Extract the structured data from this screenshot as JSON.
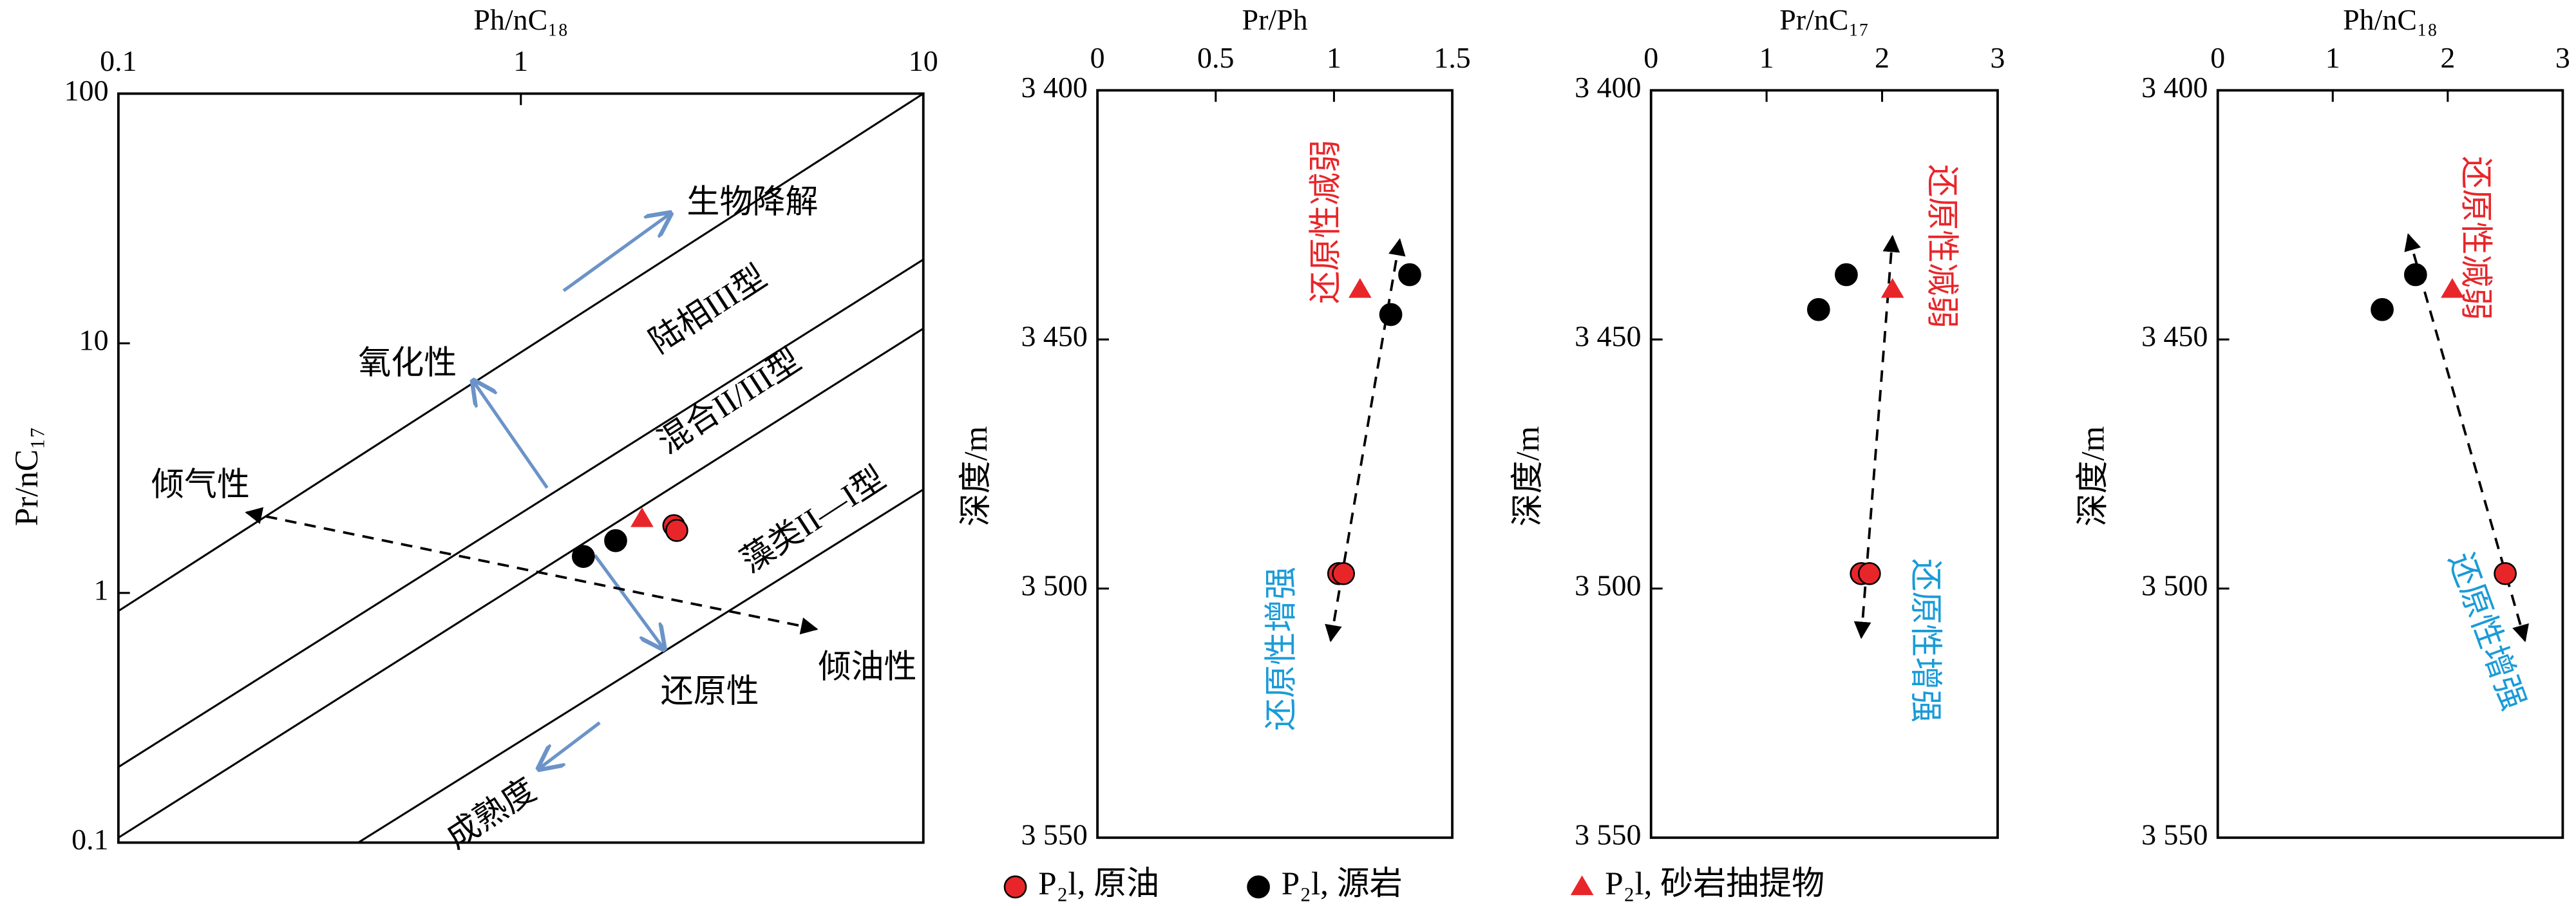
{
  "chart_data": [
    {
      "type": "scatter",
      "x_label": "Ph/nC₁₈",
      "y_label": "Pr/nC₁₇",
      "x_log": true,
      "y_log": true,
      "xlim": [
        0.1,
        10
      ],
      "ylim": [
        0.1,
        100
      ],
      "xticks": [
        0.1,
        1,
        10
      ],
      "yticks": [
        0.1,
        1,
        10,
        100
      ],
      "annotations": [
        "生物降解",
        "氧化性",
        "陆相III型",
        "混合II/III型",
        "藻类II—I型",
        "倾气性",
        "倾油性",
        "还原性",
        "成熟度"
      ],
      "series": [
        {
          "name": "P₂l, 原油",
          "color": "#e8262a",
          "marker": "circle",
          "x": [
            2.4,
            2.44
          ],
          "values": [
            1.86,
            1.78
          ]
        },
        {
          "name": "P₂l, 源岩",
          "color": "#000000",
          "marker": "circle",
          "x": [
            1.43,
            1.72
          ],
          "values": [
            1.4,
            1.62
          ]
        },
        {
          "name": "P₂l, 砂岩抽提物",
          "color": "#e8262a",
          "marker": "triangle",
          "x": [
            2.0
          ],
          "values": [
            1.98
          ]
        }
      ]
    },
    {
      "type": "scatter",
      "x_label": "Pr/Ph",
      "y_label": "深度/m",
      "y_inverted": true,
      "xlim": [
        0,
        1.5
      ],
      "ylim": [
        3400,
        3550
      ],
      "xticks": [
        0,
        0.5,
        1,
        1.5
      ],
      "yticks": [
        {
          "value": 3400,
          "label": "3 400"
        },
        {
          "value": 3450,
          "label": "3 450"
        },
        {
          "value": 3500,
          "label": "3 500"
        },
        {
          "value": 3550,
          "label": "3 550"
        }
      ],
      "annotations": [
        "还原性减弱",
        "还原性增强"
      ],
      "series": [
        {
          "color": "#e8262a",
          "marker": "circle",
          "x": [
            1.02,
            1.04
          ],
          "values": [
            3497,
            3497
          ]
        },
        {
          "color": "#000000",
          "marker": "circle",
          "x": [
            1.32,
            1.24
          ],
          "values": [
            3437,
            3445
          ]
        },
        {
          "color": "#e8262a",
          "marker": "triangle",
          "x": [
            1.11
          ],
          "values": [
            3440
          ]
        }
      ]
    },
    {
      "type": "scatter",
      "x_label": "Pr/nC₁₇",
      "y_label": "深度/m",
      "y_inverted": true,
      "xlim": [
        0,
        3
      ],
      "ylim": [
        3400,
        3550
      ],
      "xticks": [
        0,
        1,
        2,
        3
      ],
      "yticks": [
        {
          "value": 3400,
          "label": "3 400"
        },
        {
          "value": 3450,
          "label": "3 450"
        },
        {
          "value": 3500,
          "label": "3 500"
        },
        {
          "value": 3550,
          "label": "3 550"
        }
      ],
      "annotations": [
        "还原性减弱",
        "还原性增强"
      ],
      "series": [
        {
          "color": "#e8262a",
          "marker": "circle",
          "x": [
            1.82,
            1.89
          ],
          "values": [
            3497,
            3497
          ]
        },
        {
          "color": "#000000",
          "marker": "circle",
          "x": [
            1.69,
            1.45
          ],
          "values": [
            3437,
            3444
          ]
        },
        {
          "color": "#e8262a",
          "marker": "triangle",
          "x": [
            2.09
          ],
          "values": [
            3440
          ]
        }
      ]
    },
    {
      "type": "scatter",
      "x_label": "Ph/nC₁₈",
      "y_label": "深度/m",
      "y_inverted": true,
      "xlim": [
        0,
        3
      ],
      "ylim": [
        3400,
        3550
      ],
      "xticks": [
        0,
        1,
        2,
        3
      ],
      "yticks": [
        {
          "value": 3400,
          "label": "3 400"
        },
        {
          "value": 3450,
          "label": "3 450"
        },
        {
          "value": 3500,
          "label": "3 500"
        },
        {
          "value": 3550,
          "label": "3 550"
        }
      ],
      "annotations": [
        "还原性减弱",
        "还原性增强"
      ],
      "series": [
        {
          "color": "#e8262a",
          "marker": "circle",
          "x": [
            2.5
          ],
          "values": [
            3497
          ]
        },
        {
          "color": "#000000",
          "marker": "circle",
          "x": [
            1.72,
            1.43
          ],
          "values": [
            3437,
            3444
          ]
        },
        {
          "color": "#e8262a",
          "marker": "triangle",
          "x": [
            2.04
          ],
          "values": [
            3440
          ]
        }
      ]
    }
  ]
}
